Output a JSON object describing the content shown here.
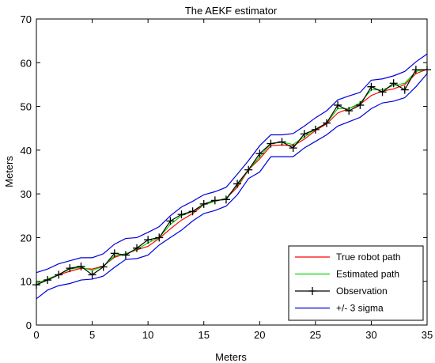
{
  "chart_data": {
    "type": "line",
    "title": "The AEKF estimator",
    "xlabel": "Meters",
    "ylabel": "Meters",
    "xlim": [
      0,
      35
    ],
    "ylim": [
      0,
      70
    ],
    "xticks": [
      0,
      5,
      10,
      15,
      20,
      25,
      30,
      35
    ],
    "yticks": [
      0,
      10,
      20,
      30,
      40,
      50,
      60,
      70
    ],
    "grid": false,
    "legend_position": "bottom-right",
    "series": [
      {
        "name": "True robot path",
        "color": "#ff0000",
        "marker": "none",
        "x": [
          0,
          1,
          2,
          3,
          4,
          5,
          6,
          7,
          8,
          9,
          10,
          11,
          12,
          13,
          14,
          15,
          16,
          17,
          18,
          19,
          20,
          21,
          22,
          23,
          24,
          25,
          26,
          27,
          28,
          29,
          30,
          31,
          32,
          33,
          34,
          35
        ],
        "y": [
          9.5,
          10.5,
          11.5,
          12.3,
          13.0,
          12.8,
          13.5,
          15.5,
          16.3,
          17.2,
          18.0,
          19.8,
          22.0,
          24.0,
          25.5,
          27.5,
          28.3,
          29.0,
          31.5,
          35.5,
          38.0,
          41.0,
          41.2,
          41.0,
          42.5,
          44.5,
          46.0,
          48.5,
          49.5,
          50.5,
          52.5,
          53.5,
          54.0,
          55.0,
          57.5,
          58.5
        ]
      },
      {
        "name": "Estimated path",
        "color": "#00dd00",
        "marker": "none",
        "x": [
          0,
          1,
          2,
          3,
          4,
          5,
          6,
          7,
          8,
          9,
          10,
          11,
          12,
          13,
          14,
          15,
          16,
          17,
          18,
          19,
          20,
          21,
          22,
          23,
          24,
          25,
          26,
          27,
          28,
          29,
          30,
          31,
          32,
          33,
          34,
          35
        ],
        "y": [
          9.5,
          10.5,
          11.6,
          12.8,
          13.2,
          12.5,
          13.4,
          15.8,
          16.3,
          17.3,
          18.8,
          20.0,
          23.0,
          25.0,
          26.0,
          27.5,
          28.3,
          29.0,
          32.0,
          35.5,
          38.5,
          41.5,
          41.8,
          41.3,
          43.0,
          44.8,
          46.2,
          49.5,
          49.5,
          50.8,
          53.8,
          53.8,
          54.8,
          55.3,
          58.0,
          58.5
        ]
      },
      {
        "name": "Observation",
        "color": "#000000",
        "marker": "+",
        "x": [
          0,
          1,
          2,
          3,
          4,
          5,
          6,
          7,
          8,
          9,
          10,
          11,
          12,
          13,
          14,
          15,
          16,
          17,
          18,
          19,
          20,
          21,
          22,
          23,
          24,
          25,
          26,
          27,
          28,
          29,
          30,
          31,
          32,
          33,
          34,
          35
        ],
        "y": [
          9.2,
          10.3,
          11.5,
          13.0,
          13.4,
          11.5,
          13.3,
          16.4,
          16.0,
          17.6,
          19.5,
          20.0,
          23.8,
          25.3,
          26.0,
          27.7,
          28.5,
          28.7,
          32.3,
          35.5,
          39.2,
          41.5,
          41.9,
          40.5,
          43.7,
          44.7,
          46.2,
          50.3,
          49.0,
          50.3,
          54.5,
          53.3,
          55.3,
          53.8,
          58.4,
          58.4
        ]
      },
      {
        "name": "+/- 3 sigma",
        "color": "#0000dd",
        "marker": "none",
        "x": [
          0,
          1,
          2,
          3,
          4,
          5,
          6,
          7,
          8,
          9,
          10,
          11,
          12,
          13,
          14,
          15,
          16,
          17,
          18,
          19,
          20,
          21,
          22,
          23,
          24,
          25,
          26,
          27,
          28,
          29,
          30,
          31,
          32,
          33,
          34,
          35
        ],
        "y": [
          12.0,
          12.8,
          14.0,
          14.7,
          15.4,
          15.4,
          16.3,
          18.5,
          19.8,
          20.0,
          21.2,
          22.5,
          25.0,
          27.0,
          28.3,
          29.8,
          30.5,
          31.5,
          34.5,
          37.6,
          41.0,
          43.5,
          43.5,
          43.8,
          45.5,
          47.4,
          49.0,
          51.5,
          52.4,
          53.2,
          56.0,
          56.3,
          57.0,
          58.0,
          60.2,
          62.0
        ]
      },
      {
        "name": "",
        "color": "#0000dd",
        "marker": "none",
        "x": [
          0,
          1,
          2,
          3,
          4,
          5,
          6,
          7,
          8,
          9,
          10,
          11,
          12,
          13,
          14,
          15,
          16,
          17,
          18,
          19,
          20,
          21,
          22,
          23,
          24,
          25,
          26,
          27,
          28,
          29,
          30,
          31,
          32,
          33,
          34,
          35
        ],
        "y": [
          6.0,
          8.0,
          9.0,
          9.5,
          10.3,
          10.5,
          11.2,
          13.2,
          15.0,
          15.2,
          16.0,
          18.3,
          20.0,
          21.7,
          23.8,
          25.5,
          26.2,
          27.2,
          29.8,
          33.5,
          35.0,
          38.5,
          38.5,
          38.5,
          40.5,
          42.0,
          43.5,
          45.5,
          46.5,
          47.5,
          49.5,
          50.8,
          51.2,
          52.0,
          54.5,
          57.5
        ]
      }
    ]
  }
}
